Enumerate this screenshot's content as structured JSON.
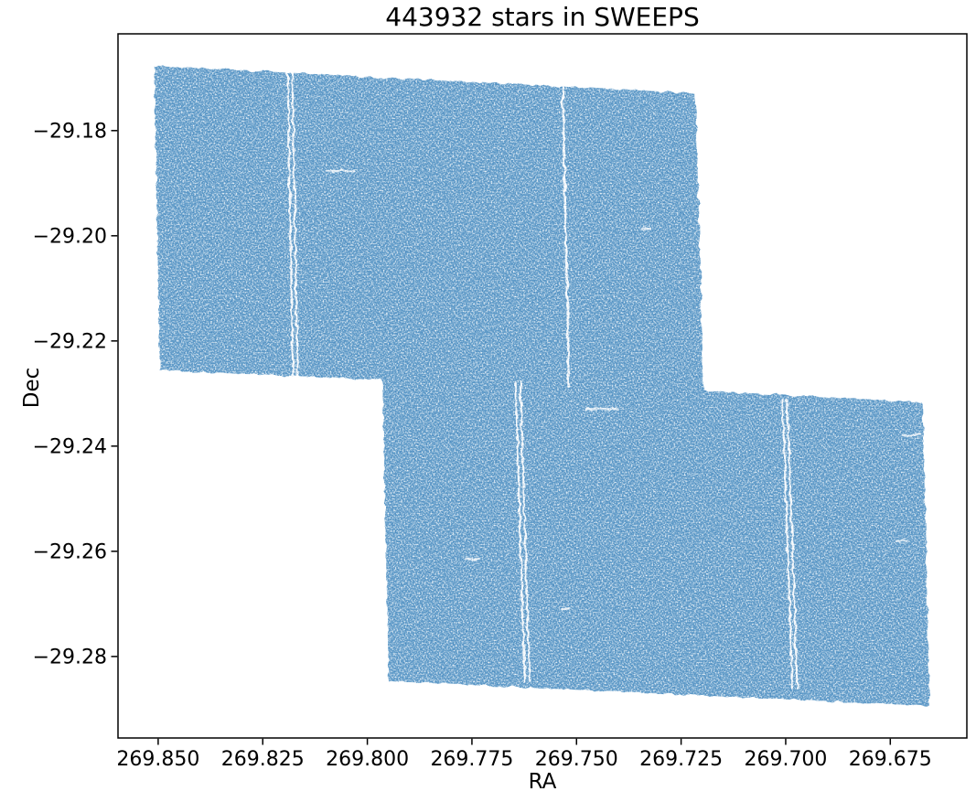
{
  "figure": {
    "background_color": "#ffffff",
    "text_color": "#000000",
    "spine_color": "#000000"
  },
  "chart_data": {
    "type": "scatter",
    "title": "443932 stars in SWEEPS",
    "n_stars": 443932,
    "survey_label": "SWEEPS",
    "xlabel": "RA",
    "ylabel": "Dec",
    "grid": false,
    "legend": "none",
    "point_color": "#1f77b4",
    "field_base_color": "#5e9ac8",
    "x_axis": {
      "label": "RA",
      "inverted": true,
      "range": [
        269.8596,
        269.6567
      ],
      "ticks": [
        269.85,
        269.825,
        269.8,
        269.775,
        269.75,
        269.725,
        269.7,
        269.675
      ],
      "tick_labels": [
        "269.850",
        "269.825",
        "269.800",
        "269.775",
        "269.750",
        "269.725",
        "269.700",
        "269.675"
      ]
    },
    "y_axis": {
      "label": "Dec",
      "range": [
        -29.2955,
        -29.1616
      ],
      "ticks": [
        -29.18,
        -29.2,
        -29.22,
        -29.24,
        -29.26,
        -29.28
      ],
      "tick_labels": [
        "−29.18",
        "−29.20",
        "−29.22",
        "−29.24",
        "−29.26",
        "−29.28"
      ]
    },
    "footprints": [
      {
        "name": "north-field",
        "corners_radec": [
          [
            269.8509,
            -29.1677
          ],
          [
            269.7216,
            -29.1729
          ],
          [
            269.7196,
            -29.2299
          ],
          [
            269.8496,
            -29.2256
          ]
        ]
      },
      {
        "name": "south-field",
        "corners_radec": [
          [
            269.7964,
            -29.2264
          ],
          [
            269.6673,
            -29.2316
          ],
          [
            269.6656,
            -29.2894
          ],
          [
            269.7949,
            -29.2847
          ]
        ]
      }
    ],
    "chip_gaps": [
      {
        "field": "north-field",
        "style": "double",
        "from": [
          269.8185,
          -29.169
        ],
        "to": [
          269.8172,
          -29.2268
        ]
      },
      {
        "field": "north-field",
        "style": "single",
        "from": [
          269.7533,
          -29.1717
        ],
        "to": [
          269.7518,
          -29.2289
        ]
      },
      {
        "field": "south-field",
        "style": "double",
        "from": [
          269.764,
          -29.2278
        ],
        "to": [
          269.7618,
          -29.2849
        ]
      },
      {
        "field": "south-field",
        "style": "double",
        "from": [
          269.7002,
          -29.2313
        ],
        "to": [
          269.6978,
          -29.2861
        ]
      }
    ],
    "artifact_streaks": [
      {
        "ra": 269.7478,
        "dec": -29.2329,
        "length_deg": 0.0077
      },
      {
        "ra": 269.6724,
        "dec": -29.2379,
        "length_deg": 0.0048
      },
      {
        "ra": 269.6739,
        "dec": -29.2581,
        "length_deg": 0.0031
      },
      {
        "ra": 269.7767,
        "dec": -29.2614,
        "length_deg": 0.0035
      },
      {
        "ra": 269.754,
        "dec": -29.271,
        "length_deg": 0.0026
      },
      {
        "ra": 269.8098,
        "dec": -29.1877,
        "length_deg": 0.0066
      },
      {
        "ra": 269.7347,
        "dec": -29.1986,
        "length_deg": 0.0026
      }
    ]
  }
}
